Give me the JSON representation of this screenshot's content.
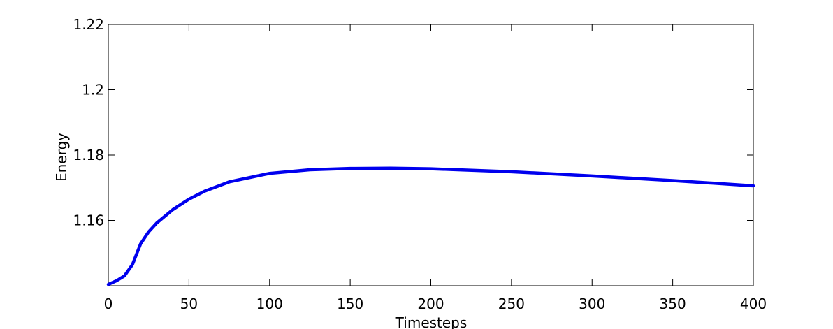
{
  "chart_data": {
    "type": "line",
    "xlabel": "Timesteps",
    "ylabel": "Energy",
    "x": [
      0,
      5,
      10,
      15,
      20,
      25,
      30,
      40,
      50,
      60,
      75,
      100,
      125,
      150,
      175,
      200,
      250,
      300,
      350,
      400
    ],
    "series": [
      {
        "color": "#0000ee",
        "values": [
          1.1404,
          1.1415,
          1.143,
          1.1465,
          1.1528,
          1.1565,
          1.1592,
          1.1633,
          1.1665,
          1.169,
          1.1718,
          1.1744,
          1.1755,
          1.1759,
          1.176,
          1.1758,
          1.1749,
          1.1736,
          1.1722,
          1.1706
        ]
      }
    ],
    "xlim": [
      0,
      400
    ],
    "xticks": [
      0,
      50,
      100,
      150,
      200,
      250,
      300,
      350,
      400
    ],
    "ylim": [
      1.14,
      1.22
    ],
    "yticks": [
      1.16,
      1.18,
      1.2,
      1.22
    ]
  }
}
